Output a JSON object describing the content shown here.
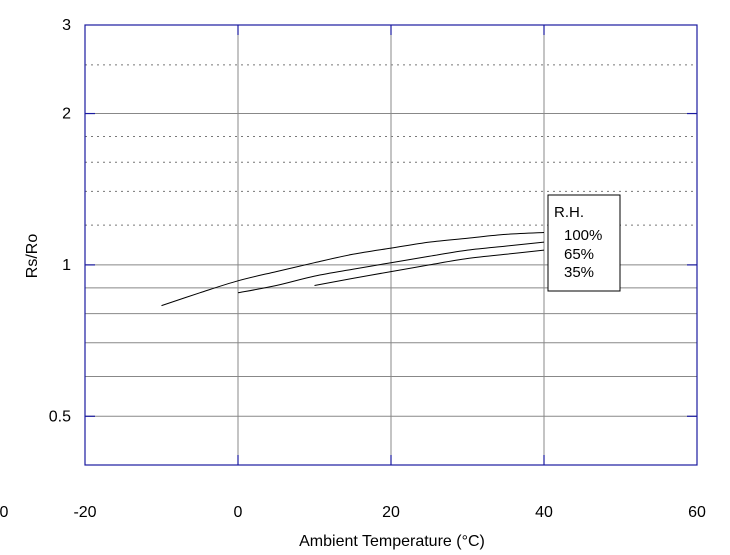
{
  "chart_data": {
    "type": "line",
    "title": "",
    "xlabel": "Ambient Temperature (°C)",
    "ylabel": "Rs/Ro",
    "xlim": [
      -20,
      60
    ],
    "ylim": [
      0.4,
      3
    ],
    "yscale": "log",
    "x_ticks": [
      "-20",
      "0",
      "20",
      "40",
      "60"
    ],
    "y_ticks": [
      "0.5",
      "1",
      "2",
      "3"
    ],
    "stray_tick_label": "0",
    "legend": {
      "title": "R.H.",
      "position": "right",
      "entries": [
        "100%",
        "65%",
        "35%"
      ]
    },
    "series": [
      {
        "name": "100%",
        "x": [
          -10,
          -5,
          0,
          5,
          10,
          15,
          20,
          25,
          30,
          35,
          40
        ],
        "y": [
          0.83,
          0.88,
          0.93,
          0.97,
          1.01,
          1.05,
          1.08,
          1.11,
          1.13,
          1.15,
          1.16
        ]
      },
      {
        "name": "65%",
        "x": [
          0,
          5,
          10,
          15,
          20,
          25,
          30,
          35,
          40
        ],
        "y": [
          0.88,
          0.91,
          0.95,
          0.98,
          1.01,
          1.04,
          1.07,
          1.09,
          1.11
        ]
      },
      {
        "name": "35%",
        "x": [
          10,
          15,
          20,
          25,
          30,
          35,
          40
        ],
        "y": [
          0.91,
          0.94,
          0.97,
          1.0,
          1.03,
          1.05,
          1.07
        ]
      }
    ]
  }
}
